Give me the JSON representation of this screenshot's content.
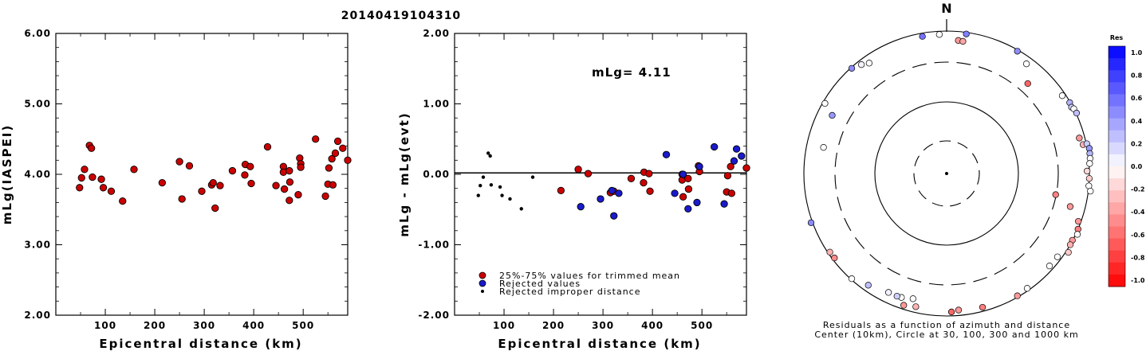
{
  "title": "20140419104310",
  "colors": {
    "accepted": "#cc0000",
    "rejected": "#1a1acc",
    "improper": "#000000"
  },
  "chart_data": [
    {
      "type": "scatter",
      "xlabel": "Epicentral distance (km)",
      "ylabel": "mLg(IASPEI)",
      "xlim": [
        0,
        590
      ],
      "ylim": [
        2.0,
        6.0
      ],
      "xticks": [
        "100",
        "200",
        "300",
        "400",
        "500"
      ],
      "yticks": [
        "2.00",
        "3.00",
        "4.00",
        "5.00",
        "6.00"
      ],
      "points": [
        [
          48,
          3.81
        ],
        [
          52,
          3.95
        ],
        [
          58,
          4.07
        ],
        [
          68,
          4.41
        ],
        [
          72,
          4.37
        ],
        [
          74,
          3.96
        ],
        [
          92,
          3.93
        ],
        [
          96,
          3.81
        ],
        [
          112,
          3.76
        ],
        [
          135,
          3.62
        ],
        [
          158,
          4.07
        ],
        [
          215,
          3.88
        ],
        [
          250,
          4.18
        ],
        [
          255,
          3.65
        ],
        [
          270,
          4.12
        ],
        [
          295,
          3.76
        ],
        [
          315,
          3.85
        ],
        [
          318,
          3.88
        ],
        [
          322,
          3.52
        ],
        [
          332,
          3.84
        ],
        [
          357,
          4.05
        ],
        [
          383,
          4.14
        ],
        [
          382,
          3.99
        ],
        [
          393,
          4.11
        ],
        [
          395,
          3.87
        ],
        [
          428,
          4.39
        ],
        [
          445,
          3.84
        ],
        [
          460,
          4.11
        ],
        [
          460,
          4.03
        ],
        [
          462,
          3.79
        ],
        [
          472,
          4.05
        ],
        [
          473,
          3.89
        ],
        [
          472,
          3.63
        ],
        [
          490,
          3.71
        ],
        [
          493,
          4.23
        ],
        [
          495,
          4.15
        ],
        [
          495,
          4.1
        ],
        [
          525,
          4.5
        ],
        [
          545,
          3.69
        ],
        [
          550,
          3.86
        ],
        [
          552,
          4.09
        ],
        [
          560,
          3.85
        ],
        [
          558,
          4.22
        ],
        [
          565,
          4.3
        ],
        [
          570,
          4.47
        ],
        [
          580,
          4.37
        ],
        [
          590,
          4.2
        ]
      ]
    },
    {
      "type": "scatter",
      "xlabel": "Epicentral distance (km)",
      "ylabel": "mLg - mLg(evt)",
      "xlim": [
        0,
        590
      ],
      "ylim": [
        -2.0,
        2.0
      ],
      "xticks": [
        "100",
        "200",
        "300",
        "400",
        "500"
      ],
      "yticks": [
        "-2.00",
        "-1.00",
        "0.00",
        "1.00",
        "2.00"
      ],
      "annotation": "mLg= 4.11",
      "legend": [
        "25%-75% values for trimmed mean",
        "Rejected values",
        "Rejected improper distance"
      ],
      "series": [
        {
          "name": "25%-75% values for trimmed mean",
          "points": [
            [
              215,
              -0.23
            ],
            [
              250,
              0.07
            ],
            [
              270,
              0.01
            ],
            [
              315,
              -0.26
            ],
            [
              322,
              -0.24
            ],
            [
              357,
              -0.06
            ],
            [
              383,
              0.03
            ],
            [
              382,
              -0.12
            ],
            [
              393,
              0.01
            ],
            [
              395,
              -0.24
            ],
            [
              460,
              0.0
            ],
            [
              460,
              -0.08
            ],
            [
              462,
              -0.32
            ],
            [
              472,
              -0.06
            ],
            [
              473,
              -0.21
            ],
            [
              493,
              0.12
            ],
            [
              495,
              0.04
            ],
            [
              550,
              -0.25
            ],
            [
              560,
              -0.27
            ],
            [
              558,
              0.11
            ],
            [
              552,
              -0.02
            ],
            [
              590,
              0.09
            ]
          ]
        },
        {
          "name": "Rejected values",
          "points": [
            [
              255,
              -0.46
            ],
            [
              295,
              -0.35
            ],
            [
              318,
              -0.23
            ],
            [
              322,
              -0.59
            ],
            [
              332,
              -0.27
            ],
            [
              428,
              0.28
            ],
            [
              445,
              -0.27
            ],
            [
              462,
              0.0
            ],
            [
              472,
              -0.49
            ],
            [
              490,
              -0.4
            ],
            [
              495,
              0.11
            ],
            [
              525,
              0.39
            ],
            [
              545,
              -0.42
            ],
            [
              565,
              0.19
            ],
            [
              570,
              0.36
            ],
            [
              580,
              0.26
            ]
          ]
        },
        {
          "name": "Rejected improper distance",
          "points": [
            [
              48,
              -0.3
            ],
            [
              52,
              -0.16
            ],
            [
              58,
              -0.04
            ],
            [
              68,
              0.3
            ],
            [
              72,
              0.26
            ],
            [
              74,
              -0.15
            ],
            [
              92,
              -0.18
            ],
            [
              96,
              -0.3
            ],
            [
              112,
              -0.35
            ],
            [
              135,
              -0.49
            ],
            [
              158,
              -0.04
            ]
          ]
        }
      ]
    },
    {
      "type": "scatter",
      "subtype": "polar",
      "north_label": "N",
      "caption": [
        "Residuals as a function of azimuth and distance",
        "Center (10km), Circle at 30, 100, 300 and 1000 km"
      ],
      "colorbar": {
        "title": "Res",
        "ticks": [
          "1.0",
          "0.8",
          "0.6",
          "0.4",
          "0.2",
          "0.0",
          "-0.2",
          "-0.4",
          "-0.6",
          "-0.8",
          "-1.0"
        ]
      },
      "points": [
        [
          350,
          900,
          0.55
        ],
        [
          357,
          900,
          0.0
        ],
        [
          8,
          950,
          0.5
        ],
        [
          5,
          750,
          -0.4
        ],
        [
          7,
          740,
          -0.35
        ],
        [
          30,
          960,
          0.45
        ],
        [
          36,
          800,
          0.0
        ],
        [
          318,
          970,
          0.45
        ],
        [
          322,
          870,
          0.05
        ],
        [
          325,
          780,
          0.0
        ],
        [
          300,
          930,
          0.0
        ],
        [
          42,
          500,
          -0.6
        ],
        [
          297,
          630,
          0.4
        ],
        [
          282,
          580,
          0.0
        ],
        [
          56,
          900,
          0.0
        ],
        [
          60,
          980,
          0.3
        ],
        [
          62,
          960,
          0.2
        ],
        [
          63,
          1000,
          0.0
        ],
        [
          65,
          1020,
          0.25
        ],
        [
          75,
          840,
          -0.4
        ],
        [
          78,
          900,
          -0.3
        ],
        [
          78,
          1020,
          0.2
        ],
        [
          80,
          1070,
          0.4
        ],
        [
          82,
          1060,
          0.3
        ],
        [
          84,
          1050,
          0.0
        ],
        [
          86,
          1020,
          0.0
        ],
        [
          95,
          1000,
          0.0
        ],
        [
          97,
          1070,
          0.0
        ],
        [
          92,
          1000,
          -0.2
        ],
        [
          89,
          930,
          -0.15
        ],
        [
          105,
          620,
          -0.4
        ],
        [
          101,
          360,
          -0.5
        ],
        [
          110,
          920,
          -0.4
        ],
        [
          113,
          1000,
          -0.5
        ],
        [
          115,
          1050,
          0.0
        ],
        [
          118,
          990,
          -0.4
        ],
        [
          120,
          1000,
          -0.3
        ],
        [
          123,
          1080,
          -0.2
        ],
        [
          127,
          880,
          0.0
        ],
        [
          132,
          870,
          0.0
        ],
        [
          145,
          930,
          0.0
        ],
        [
          150,
          960,
          -0.4
        ],
        [
          165,
          880,
          -0.5
        ],
        [
          175,
          840,
          -0.4
        ],
        [
          178,
          880,
          -0.6
        ],
        [
          195,
          660,
          0.0
        ],
        [
          193,
          830,
          -0.3
        ],
        [
          198,
          880,
          -0.4
        ],
        [
          200,
          710,
          0.0
        ],
        [
          202,
          720,
          0.2
        ],
        [
          206,
          720,
          0.05
        ],
        [
          215,
          820,
          0.25
        ],
        [
          233,
          930,
          -0.45
        ],
        [
          236,
          940,
          -0.3
        ],
        [
          222,
          970,
          0.0
        ],
        [
          250,
          1050,
          0.45
        ]
      ]
    }
  ]
}
